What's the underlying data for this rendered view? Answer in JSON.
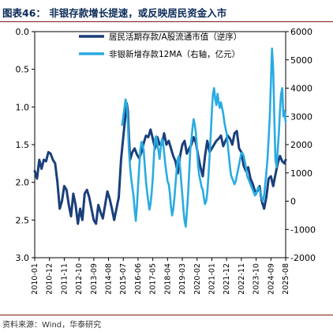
{
  "title": "图表46：  非银存款增长提速，或反映居民资金入市",
  "source": "资料来源：Wind，华泰研究",
  "colors": {
    "dark_series": "#1a3f7a",
    "light_series": "#2aabe2",
    "rule": "#7f1b1b",
    "title": "#0b2a58"
  },
  "chart_data": {
    "type": "line",
    "x_tick_labels": [
      "2010-01",
      "2010-12",
      "2011-11",
      "2012-10",
      "2013-09",
      "2014-08",
      "2015-07",
      "2016-06",
      "2017-05",
      "2018-04",
      "2019-03",
      "2020-02",
      "2021-01",
      "2021-12",
      "2022-11",
      "2023-10",
      "2024-09",
      "2025-08"
    ],
    "left_axis": {
      "ticks": [
        "0.0",
        "0.5",
        "1.0",
        "1.5",
        "2.0",
        "2.5",
        "3.0"
      ],
      "range": [
        0,
        3.0
      ],
      "inverted": true
    },
    "right_axis": {
      "ticks": [
        "6000",
        "5000",
        "4000",
        "3000",
        "2000",
        "1000",
        "0",
        "-1000",
        "-2000"
      ],
      "range": [
        -2000,
        6000
      ]
    },
    "legend": {
      "placement": "top-right"
    },
    "series": [
      {
        "name": "居民活期存款/A股流通市值（逆序）",
        "axis": "left",
        "color": "#1a3f7a",
        "values": [
          [
            0,
            1.85
          ],
          [
            2,
            1.95
          ],
          [
            4,
            1.7
          ],
          [
            6,
            1.82
          ],
          [
            8,
            1.7
          ],
          [
            10,
            1.72
          ],
          [
            12,
            1.6
          ],
          [
            14,
            1.62
          ],
          [
            16,
            1.7
          ],
          [
            18,
            1.75
          ],
          [
            20,
            2.0
          ],
          [
            22,
            2.35
          ],
          [
            24,
            2.25
          ],
          [
            26,
            2.05
          ],
          [
            28,
            2.1
          ],
          [
            30,
            2.3
          ],
          [
            32,
            2.45
          ],
          [
            34,
            2.15
          ],
          [
            36,
            2.3
          ],
          [
            38,
            2.55
          ],
          [
            40,
            2.35
          ],
          [
            42,
            2.5
          ],
          [
            44,
            2.15
          ],
          [
            46,
            2.1
          ],
          [
            48,
            2.2
          ],
          [
            50,
            2.35
          ],
          [
            52,
            2.5
          ],
          [
            54,
            2.55
          ],
          [
            56,
            2.3
          ],
          [
            58,
            2.4
          ],
          [
            60,
            2.48
          ],
          [
            62,
            2.3
          ],
          [
            64,
            2.12
          ],
          [
            66,
            2.22
          ],
          [
            68,
            2.35
          ],
          [
            70,
            2.5
          ],
          [
            72,
            2.35
          ],
          [
            74,
            2.2
          ],
          [
            76,
            1.7
          ],
          [
            78,
            1.4
          ],
          [
            80,
            1.1
          ],
          [
            81,
            0.95
          ],
          [
            82,
            1.05
          ],
          [
            83,
            1.4
          ],
          [
            84,
            1.7
          ],
          [
            86,
            1.6
          ],
          [
            88,
            1.55
          ],
          [
            90,
            1.63
          ],
          [
            92,
            1.68
          ],
          [
            94,
            1.6
          ],
          [
            96,
            1.48
          ],
          [
            98,
            1.38
          ],
          [
            100,
            1.4
          ],
          [
            102,
            1.3
          ],
          [
            104,
            1.42
          ],
          [
            106,
            1.55
          ],
          [
            108,
            1.4
          ],
          [
            110,
            1.5
          ],
          [
            112,
            1.5
          ],
          [
            114,
            1.35
          ],
          [
            116,
            1.5
          ],
          [
            118,
            1.45
          ],
          [
            120,
            1.55
          ],
          [
            122,
            1.65
          ],
          [
            124,
            1.72
          ],
          [
            126,
            1.88
          ],
          [
            128,
            1.65
          ],
          [
            130,
            1.5
          ],
          [
            132,
            1.45
          ],
          [
            134,
            1.62
          ],
          [
            136,
            1.55
          ],
          [
            138,
            1.5
          ],
          [
            140,
            1.4
          ],
          [
            142,
            1.48
          ],
          [
            144,
            1.65
          ],
          [
            146,
            1.8
          ],
          [
            148,
            1.92
          ],
          [
            150,
            1.65
          ],
          [
            152,
            1.45
          ],
          [
            154,
            1.6
          ],
          [
            156,
            1.55
          ],
          [
            158,
            1.5
          ],
          [
            160,
            1.45
          ],
          [
            162,
            1.42
          ],
          [
            164,
            1.38
          ],
          [
            166,
            1.52
          ],
          [
            168,
            1.45
          ],
          [
            170,
            1.38
          ],
          [
            172,
            1.42
          ],
          [
            174,
            1.5
          ],
          [
            176,
            1.35
          ],
          [
            178,
            1.32
          ],
          [
            180,
            1.55
          ],
          [
            182,
            1.6
          ],
          [
            184,
            1.78
          ],
          [
            186,
            1.85
          ],
          [
            188,
            1.8
          ],
          [
            190,
            1.95
          ],
          [
            192,
            2.02
          ],
          [
            194,
            2.12
          ],
          [
            196,
            2.12
          ],
          [
            198,
            2.05
          ],
          [
            200,
            2.25
          ],
          [
            202,
            2.35
          ],
          [
            204,
            2.2
          ],
          [
            206,
            1.95
          ],
          [
            208,
            1.92
          ],
          [
            210,
            2.05
          ],
          [
            212,
            1.9
          ],
          [
            214,
            1.75
          ],
          [
            216,
            1.65
          ],
          [
            218,
            1.72
          ],
          [
            220,
            1.75
          ],
          [
            221,
            1.7
          ]
        ]
      },
      {
        "name": "非银新增存款12MA（右轴，亿元）",
        "axis": "right",
        "color": "#2aabe2",
        "values": [
          [
            77,
            2700
          ],
          [
            79,
            3300
          ],
          [
            80,
            3600
          ],
          [
            81,
            3400
          ],
          [
            82,
            2800
          ],
          [
            83,
            1800
          ],
          [
            84,
            1200
          ],
          [
            85,
            800
          ],
          [
            86,
            500
          ],
          [
            87,
            200
          ],
          [
            88,
            -300
          ],
          [
            89,
            -700
          ],
          [
            90,
            -200
          ],
          [
            91,
            500
          ],
          [
            92,
            1200
          ],
          [
            93,
            1800
          ],
          [
            94,
            2100
          ],
          [
            95,
            2000
          ],
          [
            96,
            1800
          ],
          [
            97,
            1200
          ],
          [
            98,
            700
          ],
          [
            99,
            300
          ],
          [
            100,
            0
          ],
          [
            101,
            -300
          ],
          [
            102,
            -100
          ],
          [
            103,
            300
          ],
          [
            104,
            800
          ],
          [
            105,
            1600
          ],
          [
            106,
            2200
          ],
          [
            107,
            2300
          ],
          [
            108,
            2000
          ],
          [
            109,
            1800
          ],
          [
            110,
            1500
          ],
          [
            111,
            1900
          ],
          [
            112,
            2200
          ],
          [
            113,
            2100
          ],
          [
            114,
            1700
          ],
          [
            115,
            1300
          ],
          [
            116,
            1000
          ],
          [
            117,
            700
          ],
          [
            118,
            600
          ],
          [
            119,
            300
          ],
          [
            120,
            -200
          ],
          [
            121,
            -500
          ],
          [
            122,
            -300
          ],
          [
            123,
            100
          ],
          [
            124,
            600
          ],
          [
            125,
            1100
          ],
          [
            126,
            1500
          ],
          [
            127,
            1600
          ],
          [
            128,
            1200
          ],
          [
            129,
            700
          ],
          [
            130,
            200
          ],
          [
            131,
            -300
          ],
          [
            132,
            -700
          ],
          [
            133,
            -900
          ],
          [
            134,
            -400
          ],
          [
            135,
            200
          ],
          [
            136,
            1000
          ],
          [
            137,
            1800
          ],
          [
            138,
            2200
          ],
          [
            139,
            2600
          ],
          [
            140,
            2900
          ],
          [
            141,
            2700
          ],
          [
            142,
            2400
          ],
          [
            143,
            1800
          ],
          [
            144,
            1200
          ],
          [
            145,
            900
          ],
          [
            146,
            700
          ],
          [
            147,
            500
          ],
          [
            148,
            400
          ],
          [
            149,
            100
          ],
          [
            150,
            -100
          ],
          [
            151,
            0
          ],
          [
            152,
            300
          ],
          [
            153,
            900
          ],
          [
            154,
            1600
          ],
          [
            155,
            2300
          ],
          [
            156,
            3200
          ],
          [
            157,
            3800
          ],
          [
            158,
            4000
          ],
          [
            159,
            3600
          ],
          [
            160,
            3400
          ],
          [
            161,
            3800
          ],
          [
            162,
            3500
          ],
          [
            163,
            3300
          ],
          [
            164,
            3500
          ],
          [
            165,
            3300
          ],
          [
            166,
            3100
          ],
          [
            167,
            2800
          ],
          [
            168,
            2600
          ],
          [
            169,
            2400
          ],
          [
            170,
            2000
          ],
          [
            171,
            1600
          ],
          [
            172,
            1200
          ],
          [
            173,
            900
          ],
          [
            174,
            800
          ],
          [
            175,
            700
          ],
          [
            176,
            600
          ],
          [
            177,
            700
          ],
          [
            178,
            900
          ],
          [
            179,
            1100
          ],
          [
            180,
            1300
          ],
          [
            181,
            1500
          ],
          [
            182,
            1700
          ],
          [
            183,
            1700
          ],
          [
            184,
            1600
          ],
          [
            185,
            1400
          ],
          [
            186,
            1200
          ],
          [
            187,
            900
          ],
          [
            188,
            800
          ],
          [
            189,
            700
          ],
          [
            190,
            600
          ],
          [
            191,
            500
          ],
          [
            192,
            400
          ],
          [
            193,
            300
          ],
          [
            194,
            200
          ],
          [
            195,
            250
          ],
          [
            196,
            400
          ],
          [
            197,
            500
          ],
          [
            198,
            400
          ],
          [
            199,
            300
          ],
          [
            200,
            100
          ],
          [
            201,
            0
          ],
          [
            202,
            200
          ],
          [
            203,
            600
          ],
          [
            204,
            1000
          ],
          [
            205,
            1500
          ],
          [
            206,
            2200
          ],
          [
            207,
            3000
          ],
          [
            208,
            4200
          ],
          [
            209,
            5400
          ],
          [
            210,
            4700
          ],
          [
            211,
            3000
          ],
          [
            212,
            1500
          ],
          [
            213,
            1200
          ],
          [
            214,
            1800
          ],
          [
            215,
            2400
          ],
          [
            216,
            3200
          ],
          [
            217,
            3800
          ],
          [
            218,
            4000
          ],
          [
            219,
            3000
          ],
          [
            220,
            3200
          ],
          [
            221,
            2800
          ]
        ]
      }
    ]
  }
}
